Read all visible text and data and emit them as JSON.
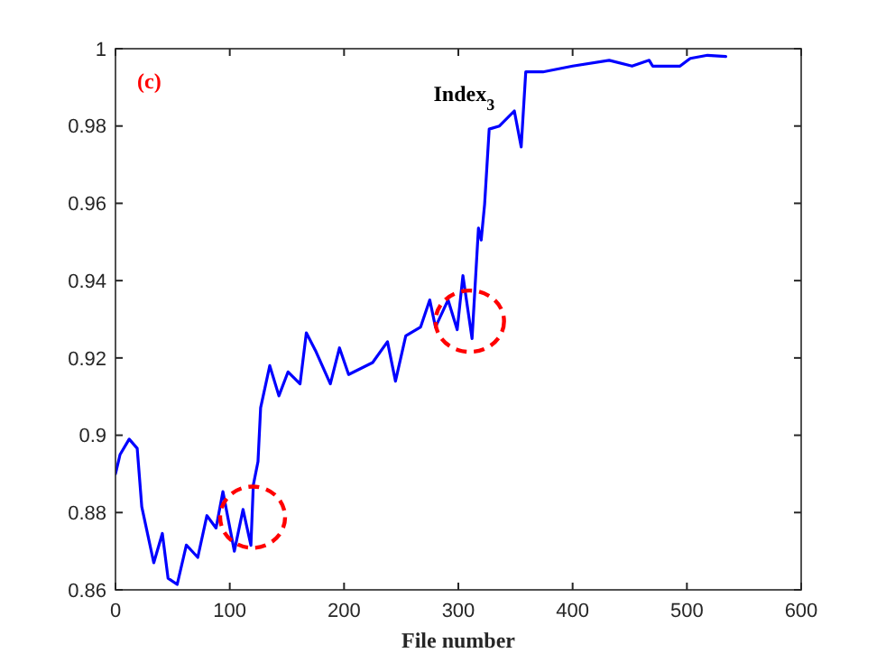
{
  "chart_data": {
    "type": "line",
    "xlabel": "File number",
    "annotations": [
      "(c)",
      "Index$_{3}$"
    ],
    "x": [
      0,
      4,
      12,
      19,
      23,
      33.5,
      41,
      46,
      54,
      62,
      72,
      80,
      88,
      94,
      104,
      111.6,
      118.5,
      120.6,
      124.7,
      127,
      135,
      143,
      151,
      161.5,
      167,
      175,
      188,
      196,
      204,
      225,
      238,
      245,
      254,
      267,
      275,
      280,
      291,
      299,
      304,
      312,
      317.6,
      320,
      323,
      327,
      336,
      349,
      355,
      359,
      374,
      400,
      432,
      452,
      467,
      470,
      494,
      503,
      518,
      534
    ],
    "series": [
      {
        "color": "#0000ff",
        "values": [
          0.89,
          0.895,
          0.899,
          0.8966,
          0.8815,
          0.867,
          0.8746,
          0.863,
          0.8614,
          0.8716,
          0.8684,
          0.8792,
          0.876,
          0.8854,
          0.87,
          0.8808,
          0.8715,
          0.8871,
          0.8932,
          0.9071,
          0.918,
          0.9102,
          0.9164,
          0.9133,
          0.9265,
          0.9219,
          0.9133,
          0.9226,
          0.9157,
          0.9188,
          0.9242,
          0.914,
          0.9257,
          0.928,
          0.935,
          0.928,
          0.935,
          0.9273,
          0.9413,
          0.925,
          0.9536,
          0.9505,
          0.9598,
          0.9792,
          0.98,
          0.9839,
          0.9746,
          0.994,
          0.994,
          0.9955,
          0.997,
          0.9955,
          0.997,
          0.9955,
          0.9955,
          0.9975,
          0.9983,
          0.998
        ]
      }
    ],
    "xlim": [
      0,
      600
    ],
    "xticks": [
      0,
      100,
      200,
      300,
      400,
      500,
      600
    ],
    "ylim": [
      0.86,
      1
    ],
    "yticks": [
      0.86,
      0.88,
      0.9,
      0.92,
      0.94,
      0.96,
      0.98,
      1
    ],
    "grid": false,
    "marker": "none",
    "line_style": "solid"
  }
}
